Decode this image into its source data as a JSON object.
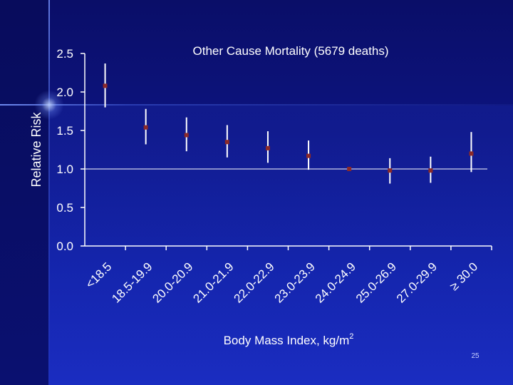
{
  "slide": {
    "page_number": "25"
  },
  "colors": {
    "axis": "#ffffff",
    "text": "#ffffff",
    "marker": "#8b2a2a",
    "error_bar": "#ffffff",
    "reference_line": "#ffffff"
  },
  "chart_data": {
    "type": "scatter",
    "title": "Other Cause Mortality (5679 deaths)",
    "xlabel": "Body Mass Index, kg/m",
    "xlabel_superscript": "2",
    "ylabel": "Relative Risk",
    "ylim": [
      0,
      2.5
    ],
    "yticks": [
      "0.0",
      "0.5",
      "1.0",
      "1.5",
      "2.0",
      "2.5"
    ],
    "reference_value": 1.0,
    "grid": false,
    "categories": [
      "<18.5",
      "18.5-19.9",
      "20.0-20.9",
      "21.0-21.9",
      "22.0-22.9",
      "23.0-23.9",
      "24.0-24.9",
      "25.0-26.9",
      "27.0-29.9",
      "≥ 30.0"
    ],
    "series": [
      {
        "values": [
          2.08,
          1.54,
          1.44,
          1.35,
          1.27,
          1.17,
          1.0,
          0.98,
          0.98,
          1.2
        ],
        "lower": [
          1.8,
          1.32,
          1.23,
          1.15,
          1.08,
          0.99,
          1.0,
          0.81,
          0.82,
          0.96
        ],
        "upper": [
          2.37,
          1.78,
          1.67,
          1.57,
          1.49,
          1.37,
          1.0,
          1.14,
          1.16,
          1.48
        ]
      }
    ]
  }
}
